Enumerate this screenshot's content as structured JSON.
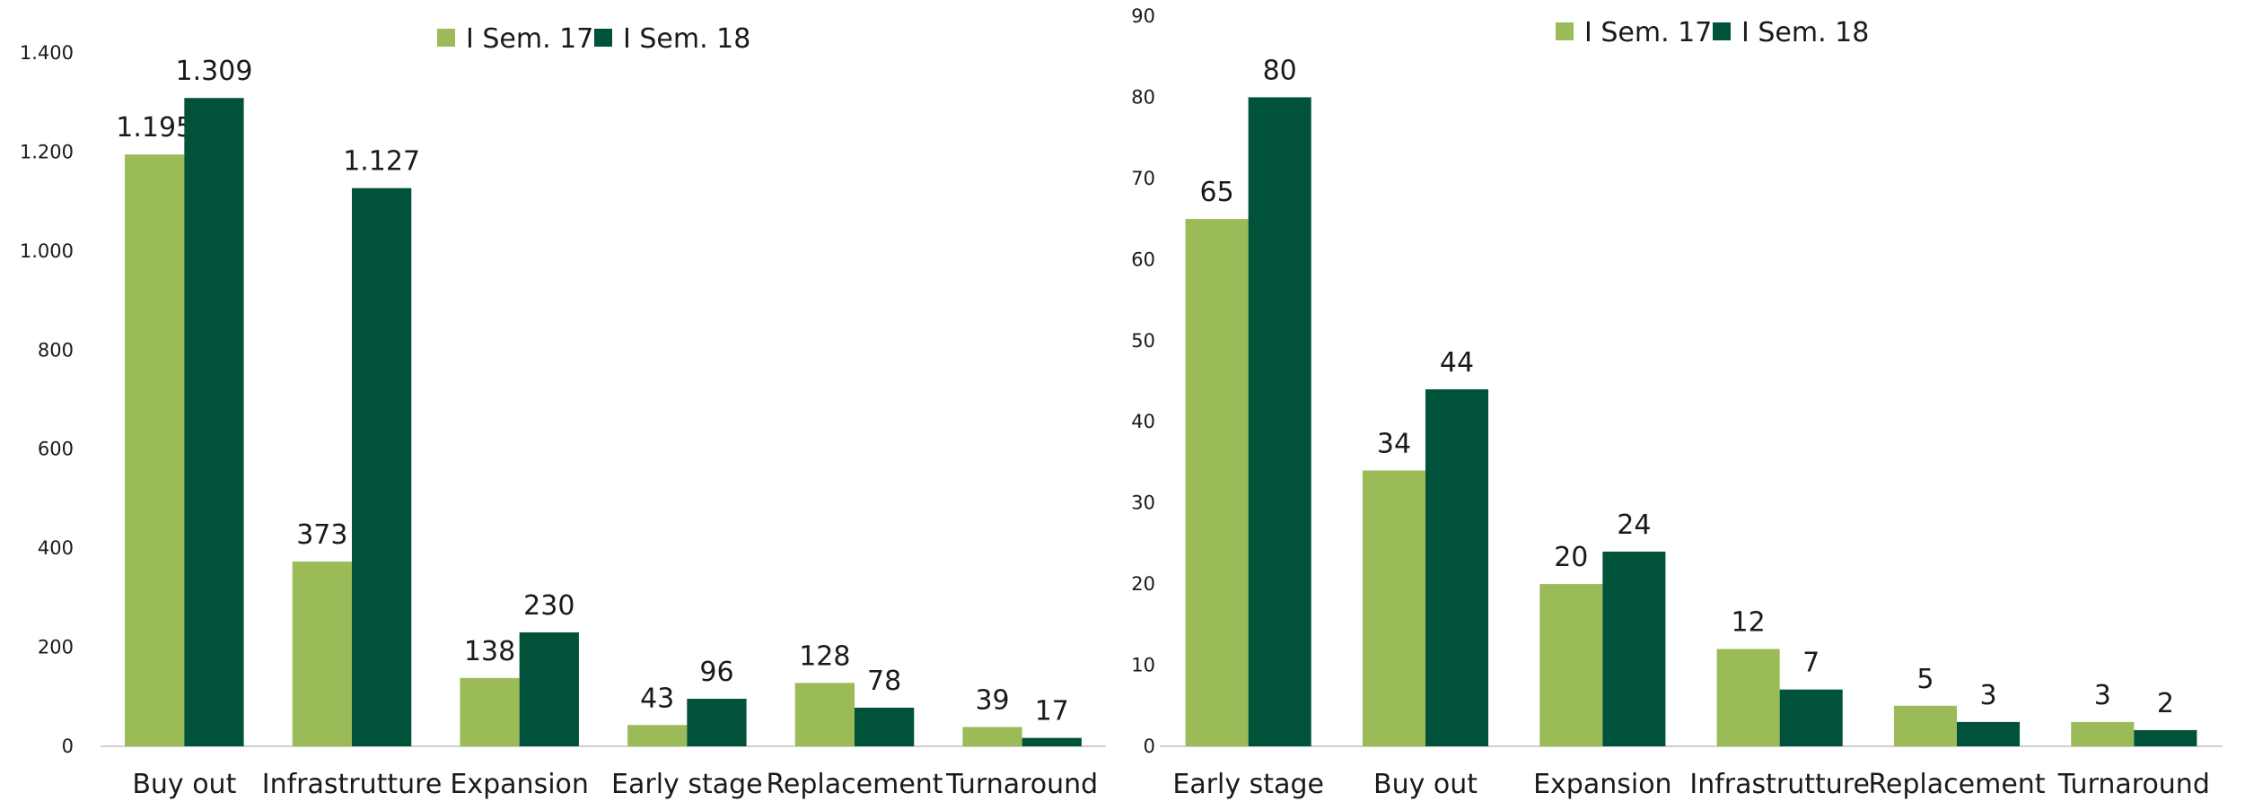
{
  "colors": {
    "series1": "#9bbb59",
    "series2": "#00533a",
    "axis": "#d0d0d0"
  },
  "chart_data": [
    {
      "type": "bar",
      "title": "",
      "xlabel": "",
      "ylabel": "",
      "categories": [
        "Buy out",
        "Infrastrutture",
        "Expansion",
        "Early stage",
        "Replacement",
        "Turnaround"
      ],
      "series": [
        {
          "name": "I Sem. 17",
          "values": [
            1195,
            373,
            138,
            43,
            128,
            39
          ],
          "labels": [
            "1.195",
            "373",
            "138",
            "43",
            "128",
            "39"
          ]
        },
        {
          "name": "I Sem. 18",
          "values": [
            1309,
            1127,
            230,
            96,
            78,
            17
          ],
          "labels": [
            "1.309",
            "1.127",
            "230",
            "96",
            "78",
            "17"
          ]
        }
      ],
      "ylim": [
        0,
        1400
      ],
      "yticks": [
        0,
        200,
        400,
        600,
        800,
        1000,
        1200,
        1400
      ],
      "ytick_labels": [
        "0",
        "200",
        "400",
        "600",
        "800",
        "1.000",
        "1.200",
        "1.400"
      ],
      "grid": false,
      "legend": "top-center"
    },
    {
      "type": "bar",
      "title": "",
      "xlabel": "",
      "ylabel": "",
      "categories": [
        "Early stage",
        "Buy out",
        "Expansion",
        "Infrastrutture",
        "Replacement",
        "Turnaround"
      ],
      "series": [
        {
          "name": "I Sem. 17",
          "values": [
            65,
            34,
            20,
            12,
            5,
            3
          ],
          "labels": [
            "65",
            "34",
            "20",
            "12",
            "5",
            "3"
          ]
        },
        {
          "name": "I Sem. 18",
          "values": [
            80,
            44,
            24,
            7,
            3,
            2
          ],
          "labels": [
            "80",
            "44",
            "24",
            "7",
            "3",
            "2"
          ]
        }
      ],
      "ylim": [
        0,
        90
      ],
      "yticks": [
        0,
        10,
        20,
        30,
        40,
        50,
        60,
        70,
        80,
        90
      ],
      "ytick_labels": [
        "0",
        "10",
        "20",
        "30",
        "40",
        "50",
        "60",
        "70",
        "80",
        "90"
      ],
      "grid": false,
      "legend": "top-center"
    }
  ]
}
